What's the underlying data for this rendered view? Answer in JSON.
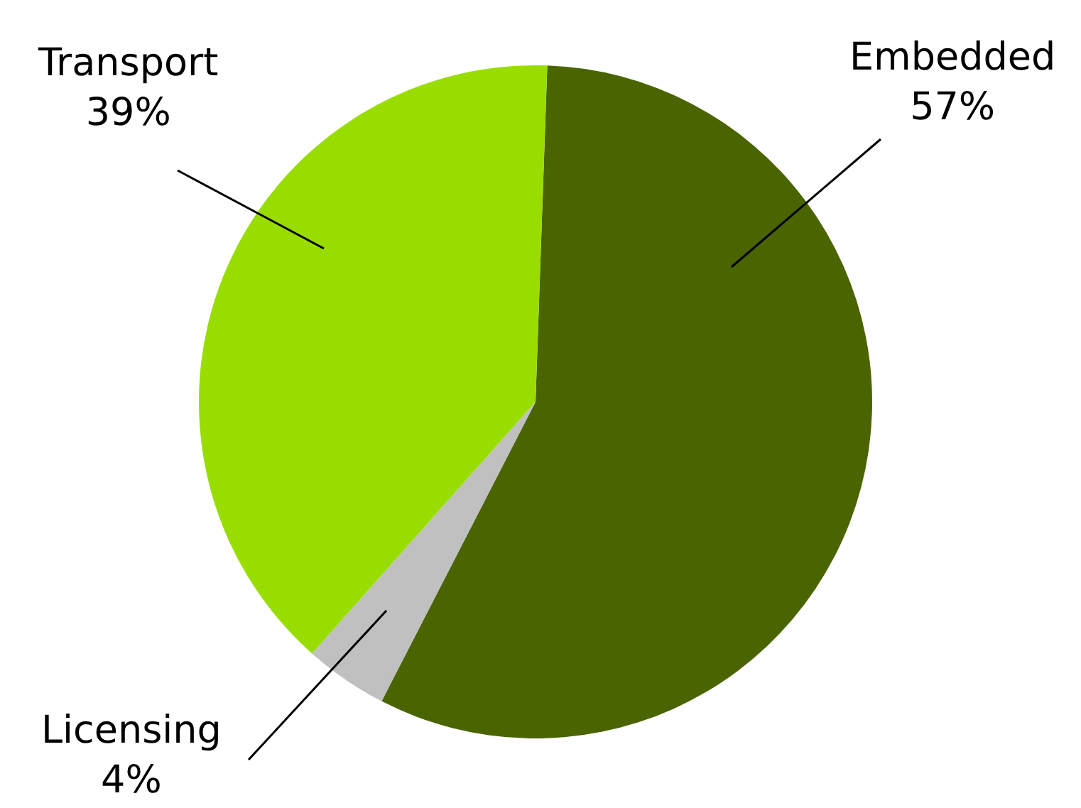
{
  "chart_data": {
    "type": "pie",
    "categories": [
      "Embedded",
      "Licensing",
      "Transport"
    ],
    "values": [
      57,
      4,
      39
    ],
    "value_labels": [
      "57%",
      "4%",
      "39%"
    ],
    "colors": [
      "#4a6400",
      "#c0c0c0",
      "#99dd00"
    ],
    "legend": false
  }
}
